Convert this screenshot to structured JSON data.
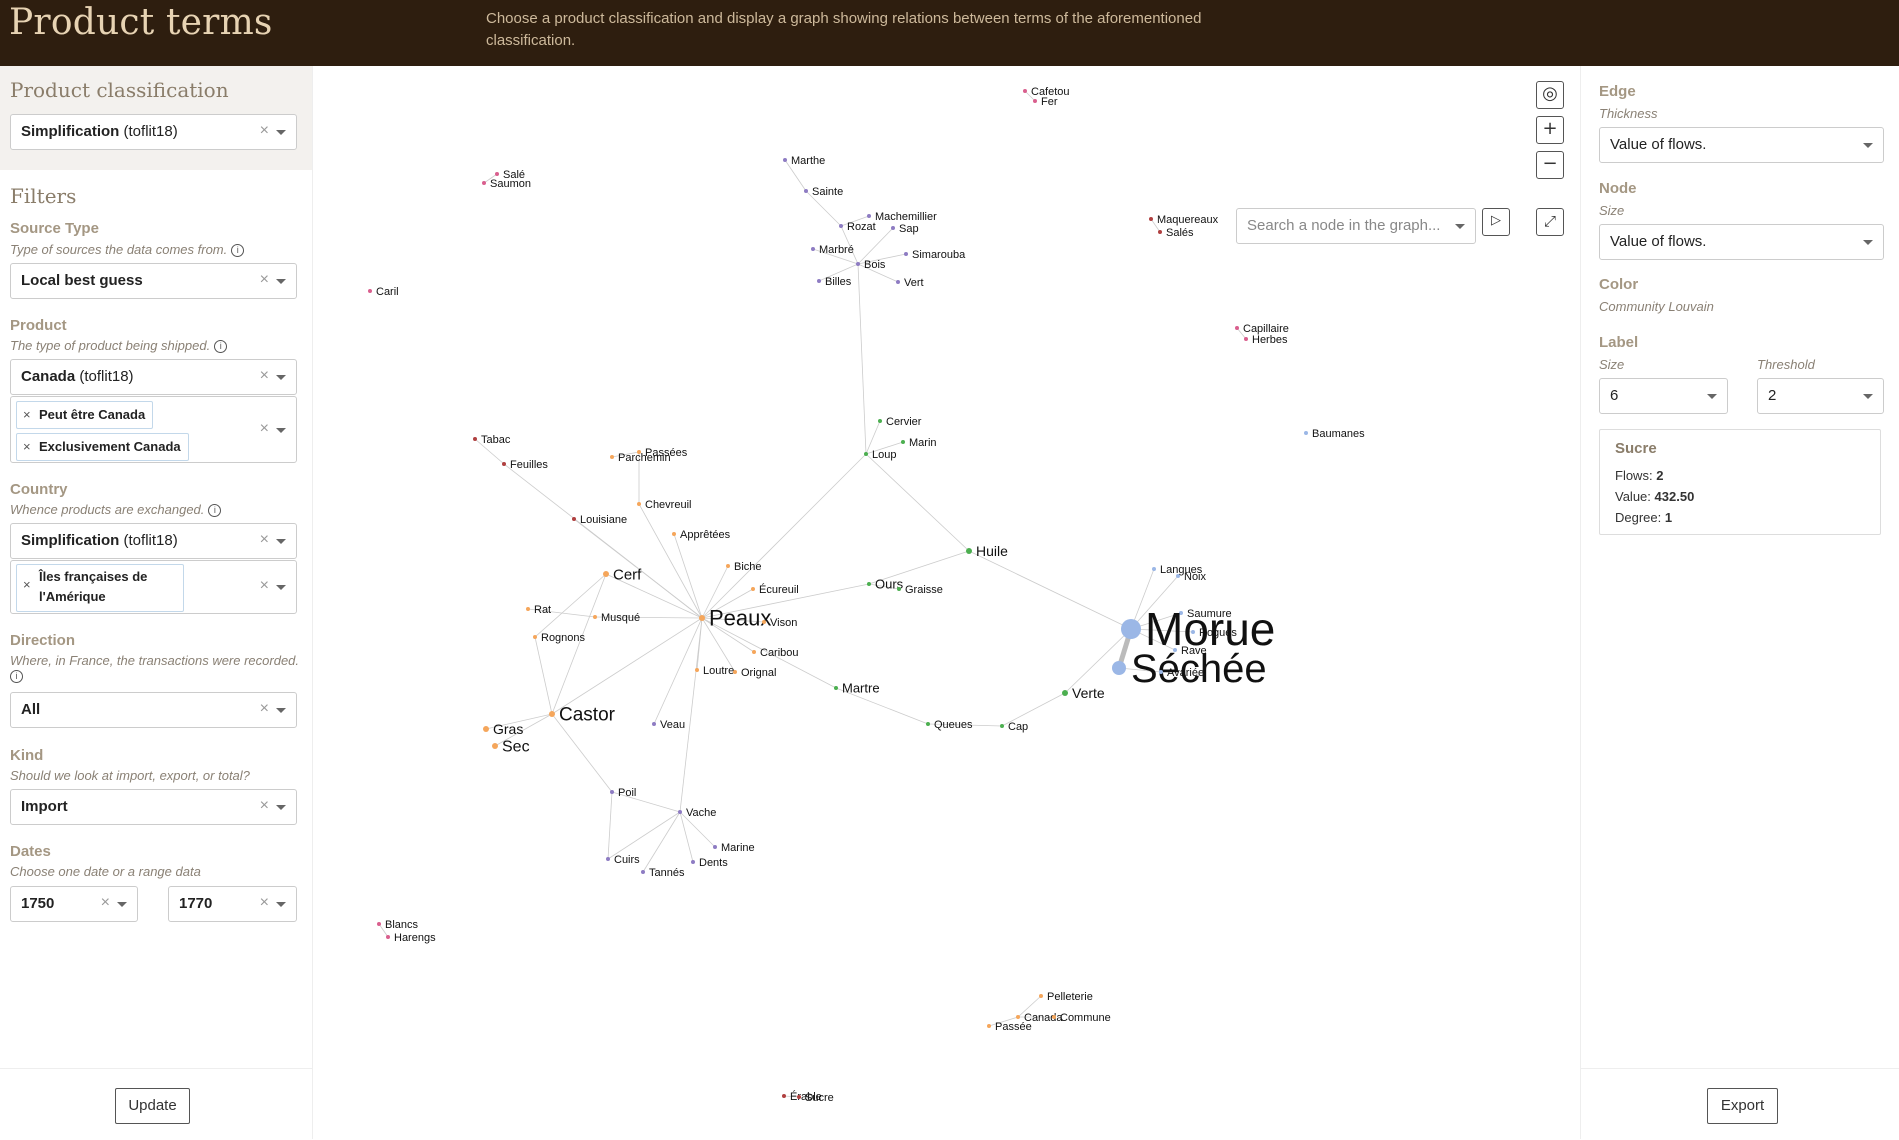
{
  "header": {
    "title": "Product terms",
    "description": "Choose a product classification and display a graph showing relations between terms of the aforementioned classification."
  },
  "left": {
    "classification_title": "Product classification",
    "classification_value": "Simplification",
    "classification_suffix": "(toflit18)",
    "filters_title": "Filters",
    "source_type": {
      "label": "Source Type",
      "help": "Type of sources the data comes from.",
      "value": "Local best guess"
    },
    "product": {
      "label": "Product",
      "help": "The type of product being shipped.",
      "value": "Canada",
      "suffix": "(toflit18)",
      "chips": [
        "Peut être Canada",
        "Exclusivement Canada"
      ]
    },
    "country": {
      "label": "Country",
      "help": "Whence products are exchanged.",
      "value": "Simplification",
      "suffix": "(toflit18)",
      "chip_line1": "Îles françaises de",
      "chip_line2": "l'Amérique"
    },
    "direction": {
      "label": "Direction",
      "help": "Where, in France, the transactions were recorded.",
      "value": "All"
    },
    "kind": {
      "label": "Kind",
      "help": "Should we look at import, export, or total?",
      "value": "Import"
    },
    "dates": {
      "label": "Dates",
      "help": "Choose one date or a range data",
      "from": "1750",
      "to": "1770"
    },
    "update_label": "Update"
  },
  "graph": {
    "search_placeholder": "Search a node in the graph...",
    "clear_symbol": "×",
    "colors": {
      "orange": "#f5a65b",
      "green": "#4caf50",
      "purple": "#8e7cc3",
      "pink": "#d95f8e",
      "blue": "#9bb7e6",
      "darkred": "#b04040",
      "edge": "#cccccc"
    },
    "nodes": [
      {
        "label": "Cafetou",
        "color": "pink",
        "size": 11
      },
      {
        "label": "Fer",
        "color": "pink",
        "size": 11
      },
      {
        "label": "Salé",
        "color": "pink",
        "size": 11
      },
      {
        "label": "Saumon",
        "color": "pink",
        "size": 11
      },
      {
        "label": "Caril",
        "color": "pink",
        "size": 11
      },
      {
        "label": "Marthe",
        "color": "purple",
        "size": 11
      },
      {
        "label": "Sainte",
        "color": "purple",
        "size": 11
      },
      {
        "label": "Machemillier",
        "color": "purple",
        "size": 11
      },
      {
        "label": "Rozat",
        "color": "purple",
        "size": 11
      },
      {
        "label": "Sap",
        "color": "purple",
        "size": 11
      },
      {
        "label": "Marbré",
        "color": "purple",
        "size": 11
      },
      {
        "label": "Simarouba",
        "color": "purple",
        "size": 11
      },
      {
        "label": "Bois",
        "color": "purple",
        "size": 11
      },
      {
        "label": "Billes",
        "color": "purple",
        "size": 11
      },
      {
        "label": "Vert",
        "color": "purple",
        "size": 11
      },
      {
        "label": "Maquereaux",
        "color": "darkred",
        "size": 11
      },
      {
        "label": "Salés",
        "color": "darkred",
        "size": 11
      },
      {
        "label": "Capillaire",
        "color": "pink",
        "size": 11
      },
      {
        "label": "Herbes",
        "color": "pink",
        "size": 11
      },
      {
        "label": "Baumanes",
        "color": "blue",
        "size": 11
      },
      {
        "label": "Tabac",
        "color": "darkred",
        "size": 11
      },
      {
        "label": "Feuilles",
        "color": "darkred",
        "size": 11
      },
      {
        "label": "Passées",
        "color": "orange",
        "size": 11
      },
      {
        "label": "Parchemin",
        "color": "orange",
        "size": 11
      },
      {
        "label": "Cervier",
        "color": "green",
        "size": 11
      },
      {
        "label": "Marin",
        "color": "green",
        "size": 11
      },
      {
        "label": "Loup",
        "color": "green",
        "size": 11
      },
      {
        "label": "Chevreuil",
        "color": "orange",
        "size": 11
      },
      {
        "label": "Louisiane",
        "color": "darkred",
        "size": 11
      },
      {
        "label": "Apprêtées",
        "color": "orange",
        "size": 11
      },
      {
        "label": "Huile",
        "color": "green",
        "size": 14
      },
      {
        "label": "Biche",
        "color": "orange",
        "size": 11
      },
      {
        "label": "Cerf",
        "color": "orange",
        "size": 15
      },
      {
        "label": "Écureuil",
        "color": "orange",
        "size": 11
      },
      {
        "label": "Ours",
        "color": "green",
        "size": 13
      },
      {
        "label": "Graisse",
        "color": "green",
        "size": 11
      },
      {
        "label": "Langues",
        "color": "blue",
        "size": 11
      },
      {
        "label": "Noix",
        "color": "blue",
        "size": 11
      },
      {
        "label": "Rat",
        "color": "orange",
        "size": 11
      },
      {
        "label": "Musqué",
        "color": "orange",
        "size": 11
      },
      {
        "label": "Peaux",
        "color": "orange",
        "size": 22
      },
      {
        "label": "Vison",
        "color": "orange",
        "size": 11
      },
      {
        "label": "Saumure",
        "color": "blue",
        "size": 11
      },
      {
        "label": "Morue",
        "color": "blue",
        "size": 46
      },
      {
        "label": "Rogues",
        "color": "blue",
        "size": 11
      },
      {
        "label": "Rognons",
        "color": "orange",
        "size": 11
      },
      {
        "label": "Caribou",
        "color": "orange",
        "size": 11
      },
      {
        "label": "Rave",
        "color": "blue",
        "size": 11
      },
      {
        "label": "Loutre",
        "color": "orange",
        "size": 11
      },
      {
        "label": "Orignal",
        "color": "orange",
        "size": 11
      },
      {
        "label": "Séchée",
        "color": "blue",
        "size": 40
      },
      {
        "label": "Avariée",
        "color": "blue",
        "size": 11
      },
      {
        "label": "Martre",
        "color": "green",
        "size": 13
      },
      {
        "label": "Verte",
        "color": "green",
        "size": 14
      },
      {
        "label": "Castor",
        "color": "orange",
        "size": 19
      },
      {
        "label": "Veau",
        "color": "purple",
        "size": 11
      },
      {
        "label": "Queues",
        "color": "green",
        "size": 11
      },
      {
        "label": "Cap",
        "color": "green",
        "size": 11
      },
      {
        "label": "Gras",
        "color": "orange",
        "size": 14
      },
      {
        "label": "Sec",
        "color": "orange",
        "size": 16
      },
      {
        "label": "Poil",
        "color": "purple",
        "size": 11
      },
      {
        "label": "Vache",
        "color": "purple",
        "size": 11
      },
      {
        "label": "Marine",
        "color": "purple",
        "size": 11
      },
      {
        "label": "Cuirs",
        "color": "purple",
        "size": 11
      },
      {
        "label": "Dents",
        "color": "purple",
        "size": 11
      },
      {
        "label": "Tannés",
        "color": "purple",
        "size": 11
      },
      {
        "label": "Blancs",
        "color": "pink",
        "size": 11
      },
      {
        "label": "Harengs",
        "color": "pink",
        "size": 11
      },
      {
        "label": "Pelleterie",
        "color": "orange",
        "size": 11
      },
      {
        "label": "Canada",
        "color": "orange",
        "size": 11
      },
      {
        "label": "Commune",
        "color": "orange",
        "size": 11
      },
      {
        "label": "Passée",
        "color": "orange",
        "size": 11
      },
      {
        "label": "Érable",
        "color": "darkred",
        "size": 11
      },
      {
        "label": "Sucre",
        "color": "darkred",
        "size": 11
      }
    ],
    "edges": [
      [
        "Cafetou",
        "Fer"
      ],
      [
        "Salé",
        "Saumon"
      ],
      [
        "Marthe",
        "Sainte"
      ],
      [
        "Sainte",
        "Rozat"
      ],
      [
        "Rozat",
        "Machemillier"
      ],
      [
        "Rozat",
        "Bois"
      ],
      [
        "Sap",
        "Bois"
      ],
      [
        "Marbré",
        "Bois"
      ],
      [
        "Simarouba",
        "Bois"
      ],
      [
        "Bois",
        "Billes"
      ],
      [
        "Bois",
        "Vert"
      ],
      [
        "Bois",
        "Loup"
      ],
      [
        "Maquereaux",
        "Salés"
      ],
      [
        "Capillaire",
        "Herbes"
      ],
      [
        "Tabac",
        "Feuilles"
      ],
      [
        "Feuilles",
        "Peaux"
      ],
      [
        "Parchemin",
        "Passées"
      ],
      [
        "Passées",
        "Chevreuil"
      ],
      [
        "Chevreuil",
        "Peaux"
      ],
      [
        "Louisiane",
        "Peaux"
      ],
      [
        "Apprêtées",
        "Peaux"
      ],
      [
        "Biche",
        "Peaux"
      ],
      [
        "Cerf",
        "Peaux"
      ],
      [
        "Cerf",
        "Castor"
      ],
      [
        "Écureuil",
        "Peaux"
      ],
      [
        "Ours",
        "Peaux"
      ],
      [
        "Ours",
        "Graisse"
      ],
      [
        "Ours",
        "Huile"
      ],
      [
        "Rat",
        "Musqué"
      ],
      [
        "Musqué",
        "Peaux"
      ],
      [
        "Vison",
        "Peaux"
      ],
      [
        "Caribou",
        "Peaux"
      ],
      [
        "Loutre",
        "Peaux"
      ],
      [
        "Orignal",
        "Peaux"
      ],
      [
        "Martre",
        "Peaux"
      ],
      [
        "Castor",
        "Peaux"
      ],
      [
        "Rognons",
        "Castor"
      ],
      [
        "Rognons",
        "Cerf"
      ],
      [
        "Veau",
        "Peaux"
      ],
      [
        "Vache",
        "Peaux"
      ],
      [
        "Cervier",
        "Loup"
      ],
      [
        "Marin",
        "Loup"
      ],
      [
        "Loup",
        "Peaux"
      ],
      [
        "Loup",
        "Huile"
      ],
      [
        "Huile",
        "Morue"
      ],
      [
        "Langues",
        "Morue"
      ],
      [
        "Noix",
        "Morue"
      ],
      [
        "Saumure",
        "Morue"
      ],
      [
        "Rogues",
        "Morue"
      ],
      [
        "Rave",
        "Morue"
      ],
      [
        "Avariée",
        "Séchée"
      ],
      [
        "Morue",
        "Séchée"
      ],
      [
        "Verte",
        "Morue"
      ],
      [
        "Martre",
        "Queues"
      ],
      [
        "Queues",
        "Cap"
      ],
      [
        "Cap",
        "Verte"
      ],
      [
        "Castor",
        "Gras"
      ],
      [
        "Castor",
        "Sec"
      ],
      [
        "Castor",
        "Poil"
      ],
      [
        "Poil",
        "Vache"
      ],
      [
        "Poil",
        "Cuirs"
      ],
      [
        "Vache",
        "Marine"
      ],
      [
        "Vache",
        "Dents"
      ],
      [
        "Vache",
        "Tannés"
      ],
      [
        "Vache",
        "Cuirs"
      ],
      [
        "Blancs",
        "Harengs"
      ],
      [
        "Pelleterie",
        "Canada"
      ],
      [
        "Canada",
        "Commune"
      ],
      [
        "Canada",
        "Passée"
      ],
      [
        "Érable",
        "Sucre"
      ]
    ]
  },
  "right": {
    "edge_label": "Edge",
    "thickness_label": "Thickness",
    "thickness_value": "Value of flows.",
    "node_label": "Node",
    "size_label": "Size",
    "size_value": "Value of flows.",
    "color_label": "Color",
    "color_value": "Community Louvain",
    "label_label": "Label",
    "label_size_label": "Size",
    "label_size_value": "6",
    "threshold_label": "Threshold",
    "threshold_value": "2",
    "info": {
      "title": "Sucre",
      "flows_label": "Flows:",
      "flows_value": "2",
      "value_label": "Value:",
      "value_value": "432.50",
      "degree_label": "Degree:",
      "degree_value": "1"
    },
    "export_label": "Export"
  }
}
